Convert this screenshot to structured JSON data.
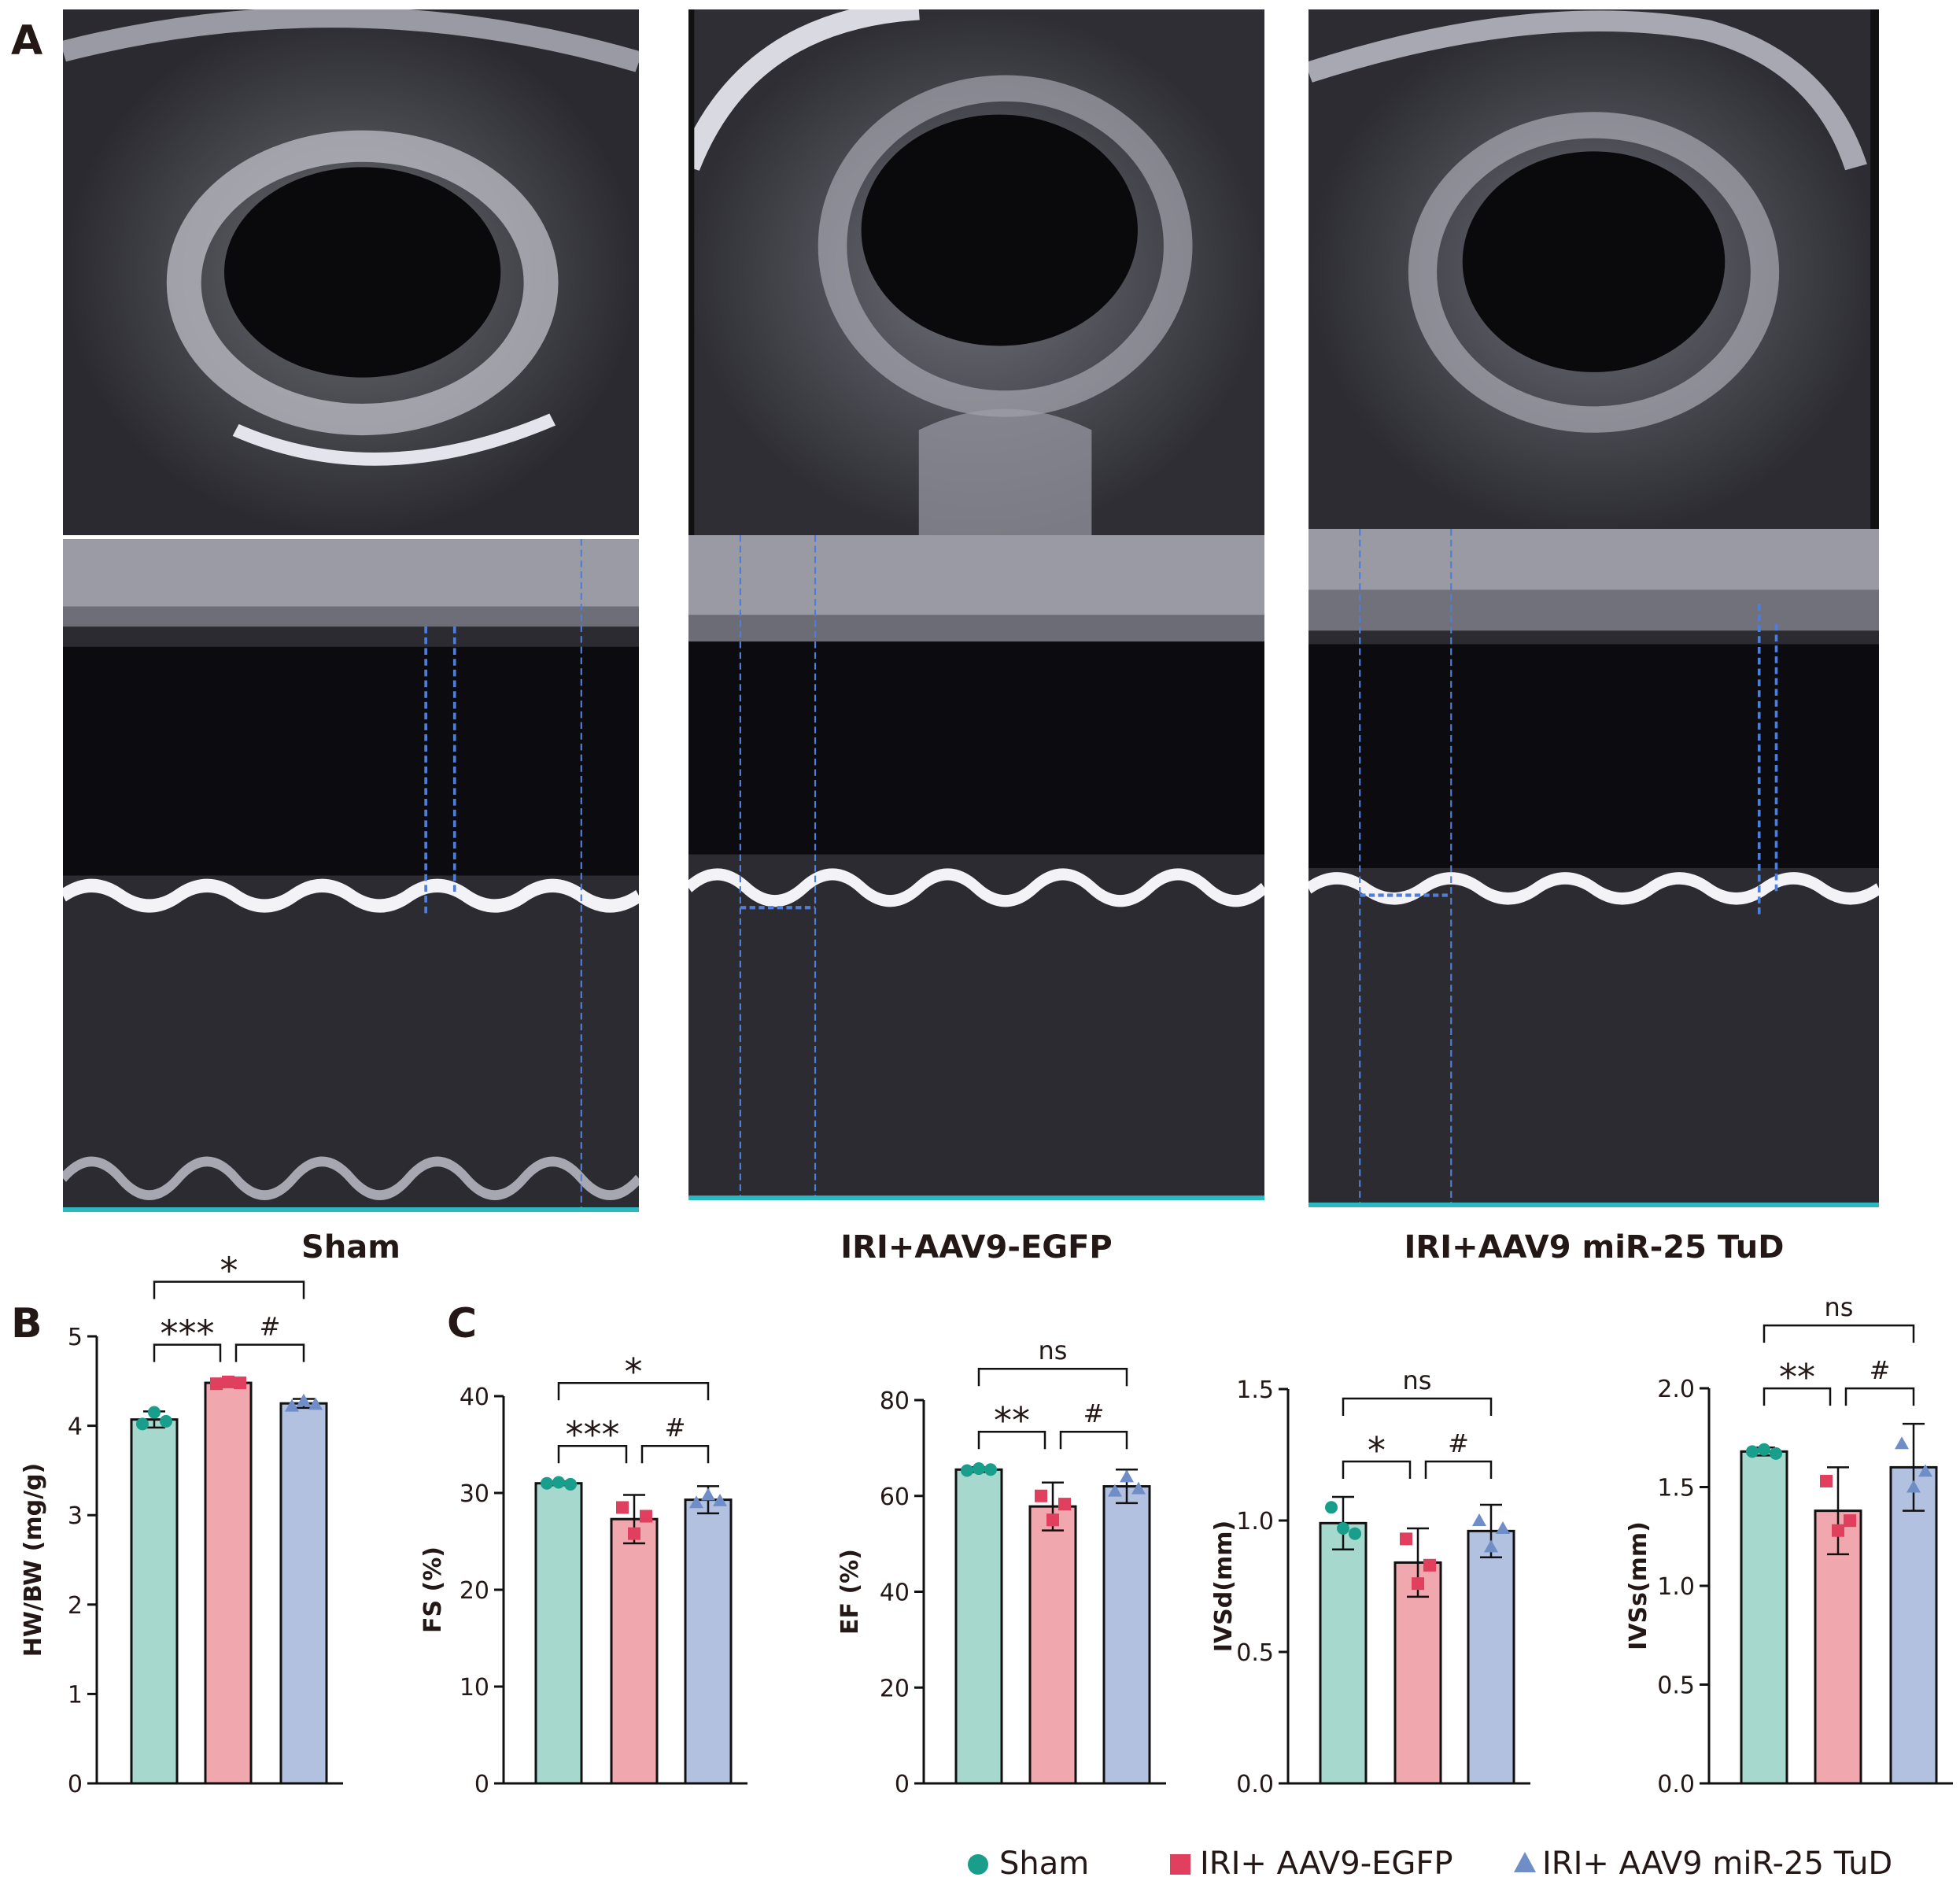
{
  "panels": {
    "A": "A",
    "B": "B",
    "C": "C"
  },
  "groups": [
    "Sham",
    "IRI+AAV9-EGFP",
    "IRI+AAV9 miR-25 TuD"
  ],
  "legend": [
    {
      "label": "Sham",
      "marker": "circle",
      "color": "#1a9e8c"
    },
    {
      "label": "IRI+ AAV9-EGFP",
      "marker": "square",
      "color": "#e0405e"
    },
    {
      "label": "IRI+ AAV9 miR-25 TuD",
      "marker": "triangle",
      "color": "#6f8ec7"
    }
  ],
  "colors": {
    "bar_fills": [
      "#a7d8cd",
      "#f0a7ae",
      "#b3c1e1"
    ],
    "points": [
      "#1a9e8c",
      "#e0405e",
      "#6f8ec7"
    ],
    "axis": "#111111"
  },
  "chart_data": [
    {
      "type": "bar",
      "ylabel": "HW/BW (mg/g)",
      "ylim": [
        0,
        5
      ],
      "yticks": [
        "0",
        "1",
        "2",
        "3",
        "4",
        "5"
      ],
      "categories": [
        "Sham",
        "IRI+AAV9-EGFP",
        "IRI+AAV9 miR-25 TuD"
      ],
      "values": [
        4.07,
        4.48,
        4.25
      ],
      "errors": [
        0.09,
        0.03,
        0.05
      ],
      "points": [
        [
          4.02,
          4.15,
          4.05
        ],
        [
          4.47,
          4.49,
          4.48
        ],
        [
          4.22,
          4.28,
          4.24
        ]
      ],
      "sig": [
        {
          "label": "***",
          "from": 0,
          "to": 1,
          "level": 1
        },
        {
          "label": "#",
          "from": 1,
          "to": 2,
          "level": 1
        },
        {
          "label": "*",
          "from": 0,
          "to": 2,
          "level": 2
        }
      ]
    },
    {
      "type": "bar",
      "ylabel": "FS (%)",
      "ylim": [
        0,
        40
      ],
      "yticks": [
        "0",
        "10",
        "20",
        "30",
        "40"
      ],
      "categories": [
        "Sham",
        "IRI+AAV9-EGFP",
        "IRI+AAV9 miR-25 TuD"
      ],
      "values": [
        31.0,
        27.3,
        29.3
      ],
      "errors": [
        0.2,
        2.5,
        1.4
      ],
      "points": [
        [
          31.0,
          31.1,
          30.9
        ],
        [
          28.5,
          25.8,
          27.6
        ],
        [
          29.0,
          29.8,
          29.2
        ]
      ],
      "sig": [
        {
          "label": "***",
          "from": 0,
          "to": 1,
          "level": 1
        },
        {
          "label": "#",
          "from": 1,
          "to": 2,
          "level": 1
        },
        {
          "label": "*",
          "from": 0,
          "to": 2,
          "level": 2
        }
      ]
    },
    {
      "type": "bar",
      "ylabel": "EF (%)",
      "ylim": [
        0,
        80
      ],
      "yticks": [
        "0",
        "20",
        "40",
        "60",
        "80"
      ],
      "categories": [
        "Sham",
        "IRI+AAV9-EGFP",
        "IRI+AAV9 miR-25 TuD"
      ],
      "values": [
        65.5,
        57.8,
        62.0
      ],
      "errors": [
        0.5,
        5.0,
        3.5
      ],
      "points": [
        [
          65.3,
          65.7,
          65.5
        ],
        [
          60.0,
          55.0,
          58.3
        ],
        [
          61.0,
          64.0,
          61.5
        ]
      ],
      "sig": [
        {
          "label": "**",
          "from": 0,
          "to": 1,
          "level": 1
        },
        {
          "label": "#",
          "from": 1,
          "to": 2,
          "level": 1
        },
        {
          "label": "ns",
          "from": 0,
          "to": 2,
          "level": 2
        }
      ]
    },
    {
      "type": "bar",
      "ylabel": "IVSd(mm)",
      "ylim": [
        0,
        1.5
      ],
      "yticks": [
        "0.0",
        "0.5",
        "1.0",
        "1.5"
      ],
      "categories": [
        "Sham",
        "IRI+AAV9-EGFP",
        "IRI+AAV9 miR-25 TuD"
      ],
      "values": [
        0.99,
        0.84,
        0.96
      ],
      "errors": [
        0.1,
        0.13,
        0.1
      ],
      "points": [
        [
          1.05,
          0.97,
          0.95
        ],
        [
          0.93,
          0.76,
          0.83
        ],
        [
          1.0,
          0.9,
          0.97
        ]
      ],
      "sig": [
        {
          "label": "*",
          "from": 0,
          "to": 1,
          "level": 1
        },
        {
          "label": "#",
          "from": 1,
          "to": 2,
          "level": 1
        },
        {
          "label": "ns",
          "from": 0,
          "to": 2,
          "level": 2
        }
      ]
    },
    {
      "type": "bar",
      "ylabel": "IVSs(mm)",
      "ylim": [
        0,
        2.0
      ],
      "yticks": [
        "0.0",
        "0.5",
        "1.0",
        "1.5",
        "2.0"
      ],
      "categories": [
        "Sham",
        "IRI+AAV9-EGFP",
        "IRI+AAV9 miR-25 TuD"
      ],
      "values": [
        1.68,
        1.38,
        1.6
      ],
      "errors": [
        0.02,
        0.22,
        0.22
      ],
      "points": [
        [
          1.68,
          1.69,
          1.67
        ],
        [
          1.53,
          1.28,
          1.33
        ],
        [
          1.72,
          1.5,
          1.58
        ]
      ],
      "sig": [
        {
          "label": "**",
          "from": 0,
          "to": 1,
          "level": 1
        },
        {
          "label": "#",
          "from": 1,
          "to": 2,
          "level": 1
        },
        {
          "label": "ns",
          "from": 0,
          "to": 2,
          "level": 2
        }
      ]
    }
  ]
}
